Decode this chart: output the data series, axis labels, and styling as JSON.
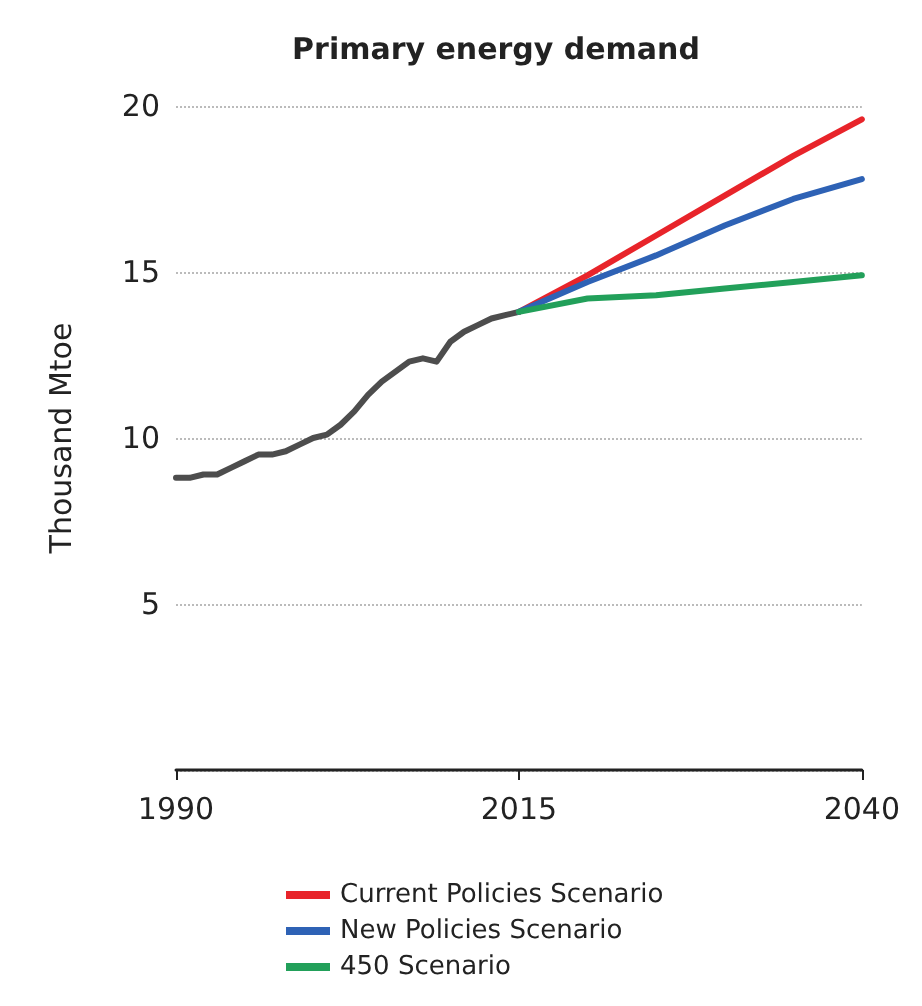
{
  "chart_data": {
    "type": "line",
    "title": "Primary energy demand",
    "ylabel": "Thousand Mtoe",
    "xlim": [
      1990,
      2040
    ],
    "xticks": [
      1990,
      2015,
      2040
    ],
    "ylim": [
      0,
      20
    ],
    "yticks": [
      {
        "value": 0,
        "label": null
      },
      5,
      10,
      15,
      20
    ],
    "grid": "y",
    "legend": "bottom",
    "marker": "none",
    "line_style": "solid",
    "series": [
      {
        "color": "#4d4d4d",
        "x": [
          1990,
          1991,
          1992,
          1993,
          1994,
          1995,
          1996,
          1997,
          1998,
          1999,
          2000,
          2001,
          2002,
          2003,
          2004,
          2005,
          2006,
          2007,
          2008,
          2009,
          2010,
          2011,
          2012,
          2013,
          2014,
          2015
        ],
        "values": [
          8.8,
          8.8,
          8.9,
          8.9,
          9.1,
          9.3,
          9.5,
          9.5,
          9.6,
          9.8,
          10.0,
          10.1,
          10.4,
          10.8,
          11.3,
          11.7,
          12.0,
          12.3,
          12.4,
          12.3,
          12.9,
          13.2,
          13.4,
          13.6,
          13.7,
          13.8
        ]
      },
      {
        "name": "Current Policies Scenario",
        "color": "#e8242a",
        "x": [
          2015,
          2020,
          2025,
          2030,
          2035,
          2040
        ],
        "values": [
          13.8,
          14.9,
          16.1,
          17.3,
          18.5,
          19.6
        ]
      },
      {
        "name": "New Policies Scenario",
        "color": "#2e62b5",
        "x": [
          2015,
          2020,
          2025,
          2030,
          2035,
          2040
        ],
        "values": [
          13.8,
          14.7,
          15.5,
          16.4,
          17.2,
          17.8
        ]
      },
      {
        "name": "450 Scenario",
        "color": "#22a05a",
        "x": [
          2015,
          2020,
          2025,
          2030,
          2035,
          2040
        ],
        "values": [
          13.8,
          14.2,
          14.3,
          14.5,
          14.7,
          14.9
        ]
      }
    ]
  }
}
